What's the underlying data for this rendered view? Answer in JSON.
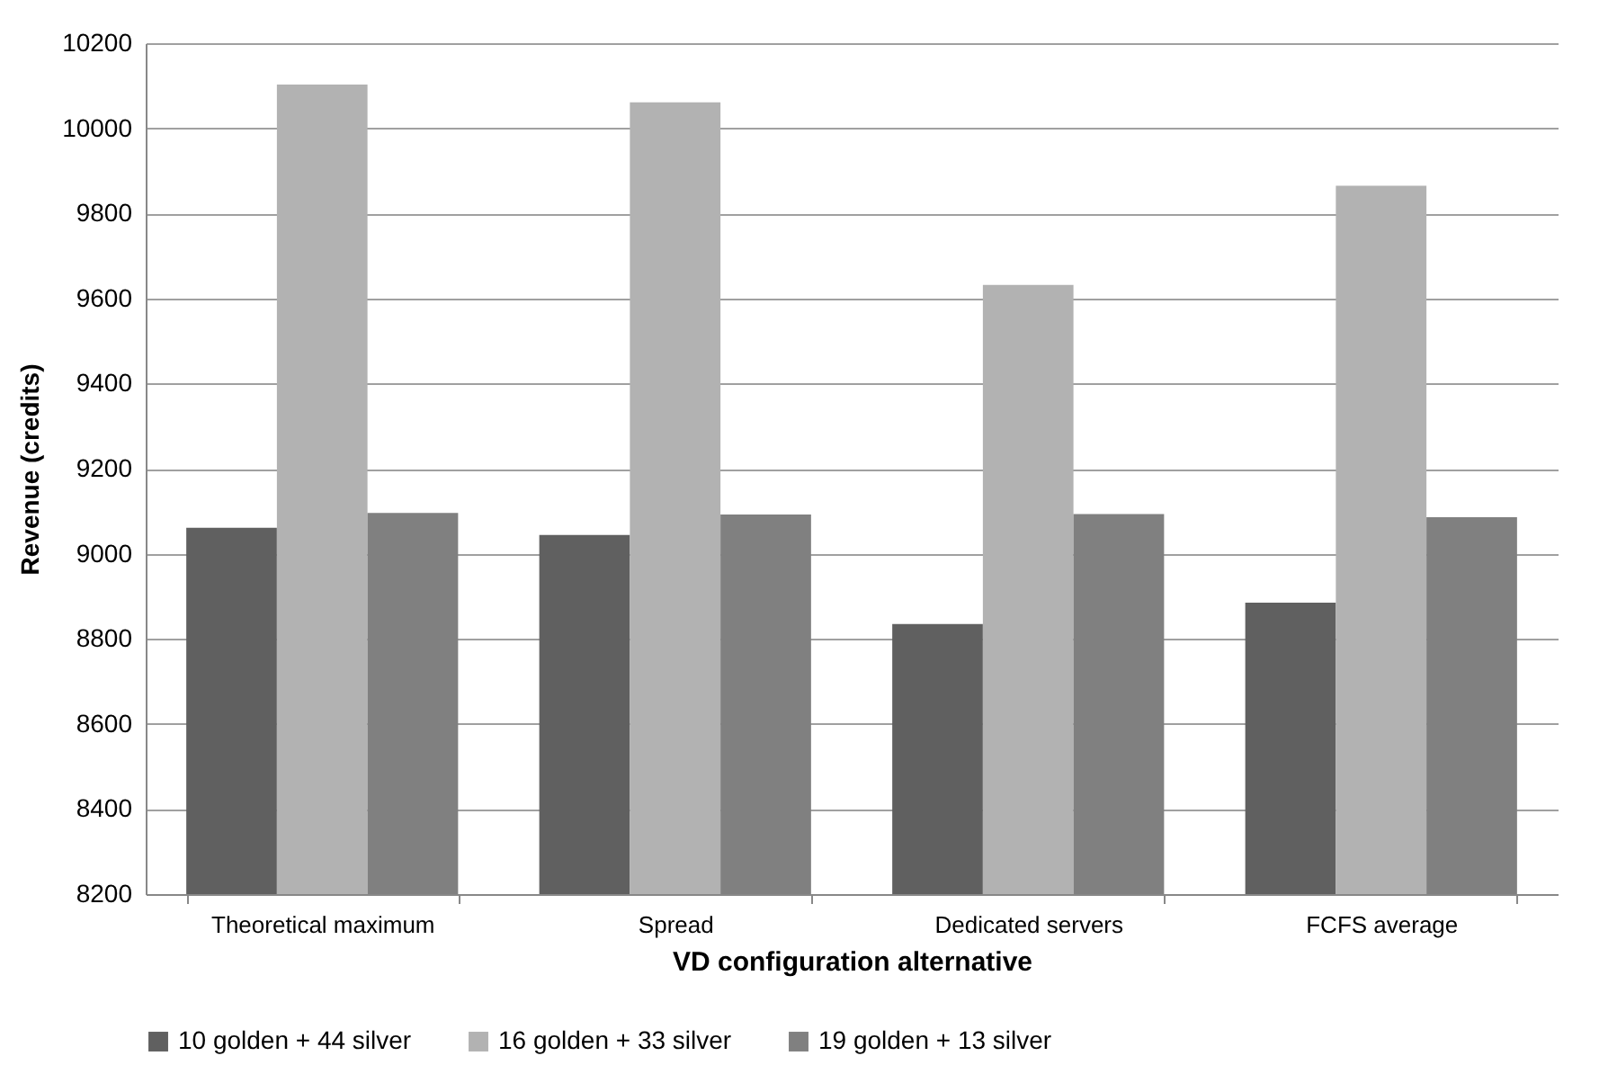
{
  "chart_data": {
    "type": "bar",
    "xlabel": "VD configuration alternative",
    "ylabel": "Revenue (credits)",
    "categories": [
      "Theoretical maximum",
      "Spread",
      "Dedicated servers",
      "FCFS average"
    ],
    "series": [
      {
        "name": "10 golden + 44 silver",
        "color": "#606060",
        "values": [
          9061,
          9044,
          8835,
          8885
        ]
      },
      {
        "name": "16 golden + 33 silver",
        "color": "#b2b2b2",
        "values": [
          10103,
          10061,
          9632,
          9865
        ]
      },
      {
        "name": "19 golden + 13 silver",
        "color": "#808080",
        "values": [
          9096,
          9092,
          9093,
          9086
        ]
      }
    ],
    "ylim": [
      8200,
      10200
    ],
    "yticks": [
      8200,
      8400,
      8600,
      8800,
      9000,
      9200,
      9400,
      9600,
      9800,
      10000,
      10200
    ],
    "grid": "y",
    "legend": "bottom"
  }
}
